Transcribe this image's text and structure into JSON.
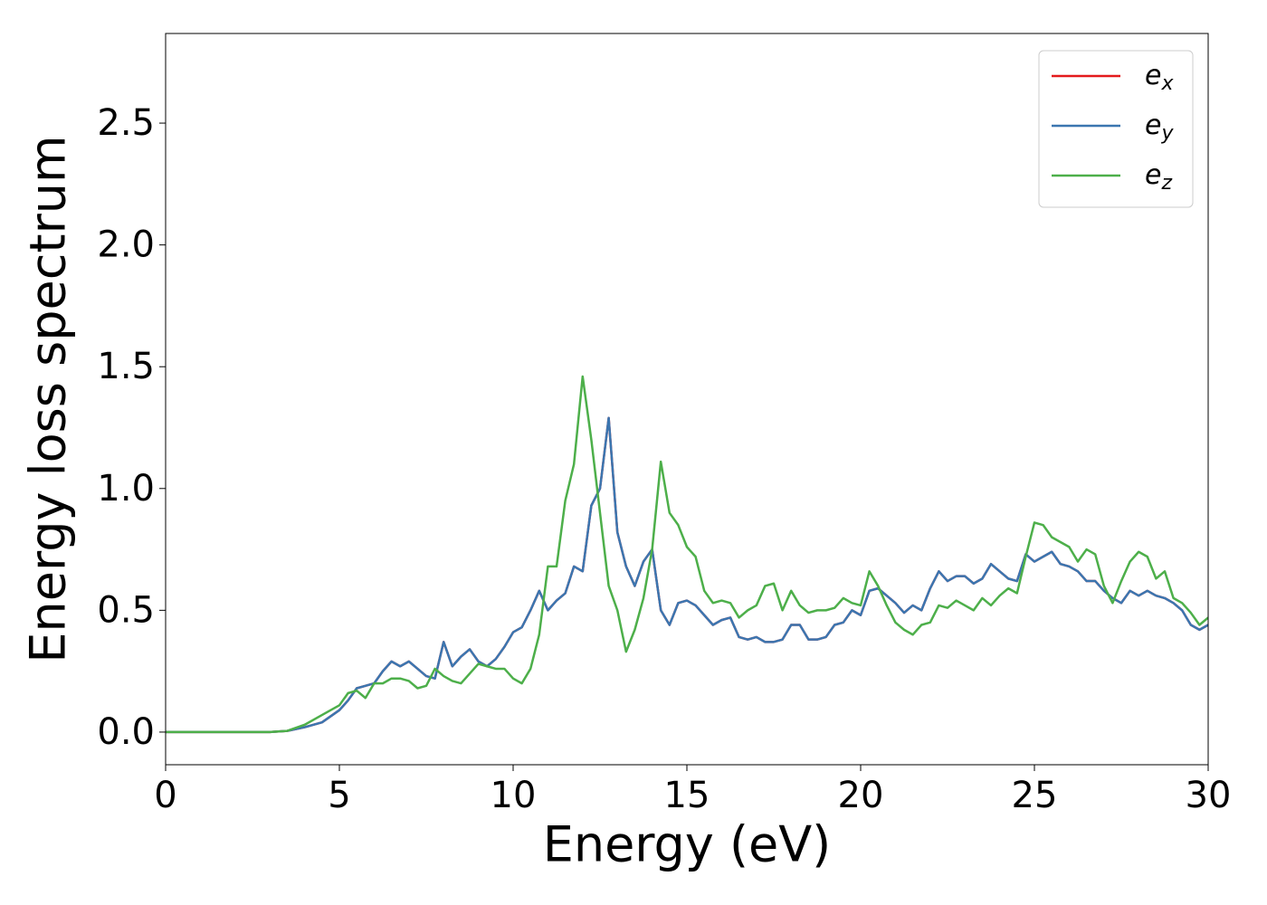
{
  "chart_data": {
    "type": "line",
    "xlabel": "Energy (eV)",
    "ylabel": "Energy loss spectrum",
    "x": [
      0,
      0.5,
      1,
      1.5,
      2,
      2.5,
      3,
      3.5,
      4,
      4.5,
      5,
      5.25,
      5.5,
      5.75,
      6,
      6.25,
      6.5,
      6.75,
      7,
      7.25,
      7.5,
      7.75,
      8,
      8.25,
      8.5,
      8.75,
      9,
      9.25,
      9.5,
      9.75,
      10,
      10.25,
      10.5,
      10.75,
      11,
      11.25,
      11.5,
      11.75,
      12,
      12.25,
      12.5,
      12.75,
      13,
      13.25,
      13.5,
      13.75,
      14,
      14.25,
      14.5,
      14.75,
      15,
      15.25,
      15.5,
      15.75,
      16,
      16.25,
      16.5,
      16.75,
      17,
      17.25,
      17.5,
      17.75,
      18,
      18.25,
      18.5,
      18.75,
      19,
      19.25,
      19.5,
      19.75,
      20,
      20.25,
      20.5,
      20.75,
      21,
      21.25,
      21.5,
      21.75,
      22,
      22.25,
      22.5,
      22.75,
      23,
      23.25,
      23.5,
      23.75,
      24,
      24.25,
      24.5,
      24.75,
      25,
      25.25,
      25.5,
      25.75,
      26,
      26.25,
      26.5,
      26.75,
      27,
      27.25,
      27.5,
      27.75,
      28,
      28.25,
      28.5,
      28.75,
      29,
      29.25,
      29.5,
      29.75,
      30
    ],
    "series": [
      {
        "name": "e_x",
        "color": "#e41a1c",
        "values": [
          0,
          0,
          0,
          0,
          0,
          0,
          0,
          0.005,
          0.02,
          0.04,
          0.09,
          0.13,
          0.18,
          0.19,
          0.2,
          0.25,
          0.29,
          0.27,
          0.29,
          0.26,
          0.23,
          0.22,
          0.37,
          0.27,
          0.31,
          0.34,
          0.29,
          0.27,
          0.3,
          0.35,
          0.41,
          0.43,
          0.5,
          0.58,
          0.5,
          0.54,
          0.57,
          0.68,
          0.66,
          0.93,
          1.0,
          1.29,
          0.82,
          0.68,
          0.6,
          0.7,
          0.75,
          0.5,
          0.44,
          0.53,
          0.54,
          0.52,
          0.48,
          0.44,
          0.46,
          0.47,
          0.39,
          0.38,
          0.39,
          0.37,
          0.37,
          0.38,
          0.44,
          0.44,
          0.38,
          0.38,
          0.39,
          0.44,
          0.45,
          0.5,
          0.48,
          0.58,
          0.59,
          0.56,
          0.53,
          0.49,
          0.52,
          0.5,
          0.59,
          0.66,
          0.62,
          0.64,
          0.64,
          0.61,
          0.63,
          0.69,
          0.66,
          0.63,
          0.62,
          0.73,
          0.7,
          0.72,
          0.74,
          0.69,
          0.68,
          0.66,
          0.62,
          0.62,
          0.58,
          0.55,
          0.53,
          0.58,
          0.56,
          0.58,
          0.56,
          0.55,
          0.53,
          0.5,
          0.44,
          0.42,
          0.44
        ]
      },
      {
        "name": "e_y",
        "color": "#3b76b0",
        "values": [
          0,
          0,
          0,
          0,
          0,
          0,
          0,
          0.005,
          0.02,
          0.04,
          0.09,
          0.13,
          0.18,
          0.19,
          0.2,
          0.25,
          0.29,
          0.27,
          0.29,
          0.26,
          0.23,
          0.22,
          0.37,
          0.27,
          0.31,
          0.34,
          0.29,
          0.27,
          0.3,
          0.35,
          0.41,
          0.43,
          0.5,
          0.58,
          0.5,
          0.54,
          0.57,
          0.68,
          0.66,
          0.93,
          1.0,
          1.29,
          0.82,
          0.68,
          0.6,
          0.7,
          0.75,
          0.5,
          0.44,
          0.53,
          0.54,
          0.52,
          0.48,
          0.44,
          0.46,
          0.47,
          0.39,
          0.38,
          0.39,
          0.37,
          0.37,
          0.38,
          0.44,
          0.44,
          0.38,
          0.38,
          0.39,
          0.44,
          0.45,
          0.5,
          0.48,
          0.58,
          0.59,
          0.56,
          0.53,
          0.49,
          0.52,
          0.5,
          0.59,
          0.66,
          0.62,
          0.64,
          0.64,
          0.61,
          0.63,
          0.69,
          0.66,
          0.63,
          0.62,
          0.73,
          0.7,
          0.72,
          0.74,
          0.69,
          0.68,
          0.66,
          0.62,
          0.62,
          0.58,
          0.55,
          0.53,
          0.58,
          0.56,
          0.58,
          0.56,
          0.55,
          0.53,
          0.5,
          0.44,
          0.42,
          0.44
        ]
      },
      {
        "name": "e_z",
        "color": "#4daf4a",
        "values": [
          0,
          0,
          0,
          0,
          0,
          0,
          0,
          0.005,
          0.03,
          0.07,
          0.11,
          0.16,
          0.17,
          0.14,
          0.2,
          0.2,
          0.22,
          0.22,
          0.21,
          0.18,
          0.19,
          0.26,
          0.23,
          0.21,
          0.2,
          0.24,
          0.28,
          0.27,
          0.26,
          0.26,
          0.22,
          0.2,
          0.26,
          0.4,
          0.68,
          0.68,
          0.95,
          1.1,
          1.46,
          1.2,
          0.9,
          0.6,
          0.5,
          0.33,
          0.42,
          0.55,
          0.75,
          1.11,
          0.9,
          0.85,
          0.76,
          0.72,
          0.58,
          0.53,
          0.54,
          0.53,
          0.47,
          0.5,
          0.52,
          0.6,
          0.61,
          0.5,
          0.58,
          0.52,
          0.49,
          0.5,
          0.5,
          0.51,
          0.55,
          0.53,
          0.52,
          0.66,
          0.6,
          0.52,
          0.45,
          0.42,
          0.4,
          0.44,
          0.45,
          0.52,
          0.51,
          0.54,
          0.52,
          0.5,
          0.55,
          0.52,
          0.56,
          0.59,
          0.57,
          0.72,
          0.86,
          0.85,
          0.8,
          0.78,
          0.76,
          0.7,
          0.75,
          0.73,
          0.6,
          0.53,
          0.62,
          0.7,
          0.74,
          0.72,
          0.63,
          0.66,
          0.55,
          0.53,
          0.49,
          0.44,
          0.47
        ]
      }
    ],
    "xlim": [
      0,
      30
    ],
    "xticks": [
      0,
      5,
      10,
      15,
      20,
      25,
      30
    ],
    "ylim": [
      -0.134,
      2.868
    ],
    "yticks": [
      {
        "value": 0,
        "label": "0.0"
      },
      0.5,
      {
        "value": 1,
        "label": "1.0"
      },
      1.5,
      {
        "value": 2,
        "label": "2.0"
      },
      2.5
    ],
    "grid": false,
    "legend": "upper right"
  }
}
